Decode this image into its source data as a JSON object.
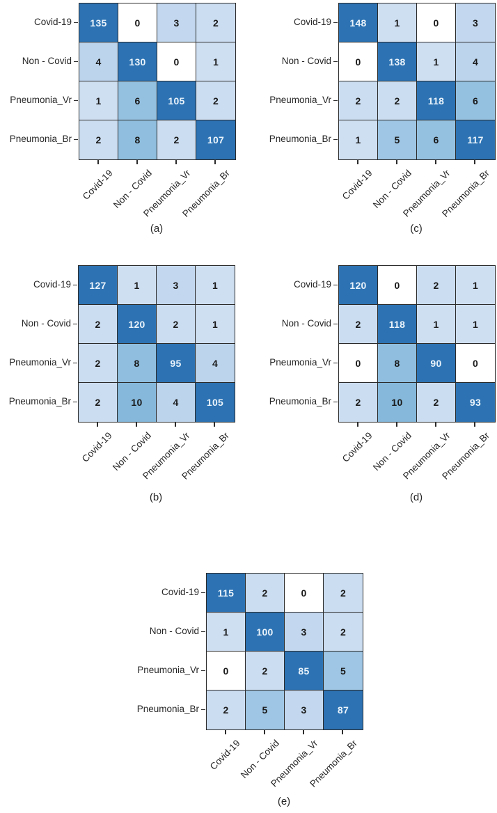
{
  "figure": {
    "description": "Five confusion matrices for four-class classification",
    "class_labels": [
      "Covid-19",
      "Non - Covid",
      "Pneumonia_Vr",
      "Pneumonia_Br"
    ],
    "palette": {
      "zero_cell": "#ffffff",
      "value_colors": {
        "1": "#cfdff2",
        "2": "#cbddf0",
        "3": "#c3d8ee",
        "4": "#bcd4ec",
        "5": "#9fc6e4",
        "6": "#95c1e1",
        "8": "#8fbede",
        "10": "#85b8db"
      },
      "diagonal_cell": "#2d73b3",
      "grid_line": "#2b2b2b",
      "text_dark": "#1a1a1a",
      "text_light": "#eaf3fb",
      "label_color": "#262626"
    }
  },
  "chart_data": [
    {
      "id": "a",
      "type": "heatmap",
      "title": "(a)",
      "position": "top-left",
      "x_labels": [
        "Covid-19",
        "Non - Covid",
        "Pneumonia_Vr",
        "Pneumonia_Br"
      ],
      "y_labels": [
        "Covid-19",
        "Non - Covid",
        "Pneumonia_Vr",
        "Pneumonia_Br"
      ],
      "values": [
        [
          135,
          0,
          3,
          2
        ],
        [
          4,
          130,
          0,
          1
        ],
        [
          1,
          6,
          105,
          2
        ],
        [
          2,
          8,
          2,
          107
        ]
      ]
    },
    {
      "id": "b",
      "type": "heatmap",
      "title": "(b)",
      "position": "middle-left",
      "x_labels": [
        "Covid-19",
        "Non - Covid",
        "Pneumonia_Vr",
        "Pneumonia_Br"
      ],
      "y_labels": [
        "Covid-19",
        "Non - Covid",
        "Pneumonia_Vr",
        "Pneumonia_Br"
      ],
      "values": [
        [
          127,
          1,
          3,
          1
        ],
        [
          2,
          120,
          2,
          1
        ],
        [
          2,
          8,
          95,
          4
        ],
        [
          2,
          10,
          4,
          105
        ]
      ]
    },
    {
      "id": "c",
      "type": "heatmap",
      "title": "(c)",
      "position": "top-right",
      "x_labels": [
        "Covid-19",
        "Non - Covid",
        "Pneumonia_Vr",
        "Pneumonia_Br"
      ],
      "y_labels": [
        "Covid-19",
        "Non - Covid",
        "Pneumonia_Vr",
        "Pneumonia_Br"
      ],
      "values": [
        [
          148,
          1,
          0,
          3
        ],
        [
          0,
          138,
          1,
          4
        ],
        [
          2,
          2,
          118,
          6
        ],
        [
          1,
          5,
          6,
          117
        ]
      ]
    },
    {
      "id": "d",
      "type": "heatmap",
      "title": "(d)",
      "position": "middle-right",
      "x_labels": [
        "Covid-19",
        "Non - Covid",
        "Pneumonia_Vr",
        "Pneumonia_Br"
      ],
      "y_labels": [
        "Covid-19",
        "Non - Covid",
        "Pneumonia_Vr",
        "Pneumonia_Br"
      ],
      "values": [
        [
          120,
          0,
          2,
          1
        ],
        [
          2,
          118,
          1,
          1
        ],
        [
          0,
          8,
          90,
          0
        ],
        [
          2,
          10,
          2,
          93
        ]
      ]
    },
    {
      "id": "e",
      "type": "heatmap",
      "title": "(e)",
      "position": "bottom-center",
      "x_labels": [
        "Covid-19",
        "Non - Covid",
        "Pneumonia_Vr",
        "Pneumonia_Br"
      ],
      "y_labels": [
        "Covid-19",
        "Non - Covid",
        "Pneumonia_Vr",
        "Pneumonia_Br"
      ],
      "values": [
        [
          115,
          2,
          0,
          2
        ],
        [
          1,
          100,
          3,
          2
        ],
        [
          0,
          2,
          85,
          5
        ],
        [
          2,
          5,
          3,
          87
        ]
      ]
    }
  ]
}
